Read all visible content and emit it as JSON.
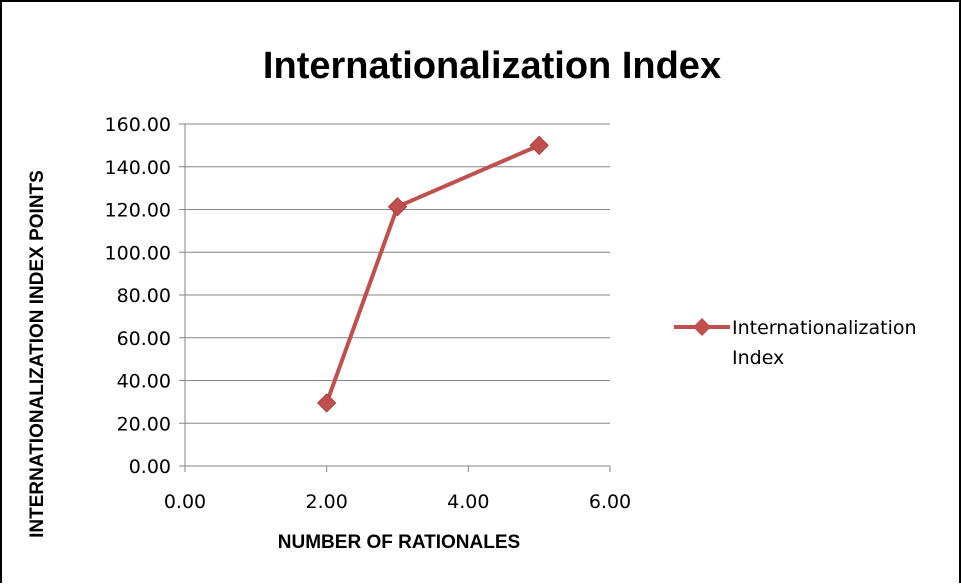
{
  "chart_data": {
    "type": "scatter",
    "title": "Internationalization Index",
    "xlabel": "NUMBER OF RATIONALES",
    "ylabel": "INTERNATIONALIZATION INDEX POINTS",
    "xlim": [
      0,
      6
    ],
    "ylim": [
      0,
      160
    ],
    "xticks": [
      0,
      2,
      4,
      6
    ],
    "yticks": [
      0,
      20,
      40,
      60,
      80,
      100,
      120,
      140,
      160
    ],
    "tick_format_decimals": 2,
    "grid": "horizontal",
    "legend_position": "right",
    "series": [
      {
        "name": "Internationalization Index",
        "name_lines": [
          "Internationalization",
          "Index"
        ],
        "color": "#c0504d",
        "marker": "diamond",
        "line": true,
        "x": [
          2,
          3,
          5
        ],
        "y": [
          29.5,
          121.3,
          150
        ]
      }
    ]
  }
}
